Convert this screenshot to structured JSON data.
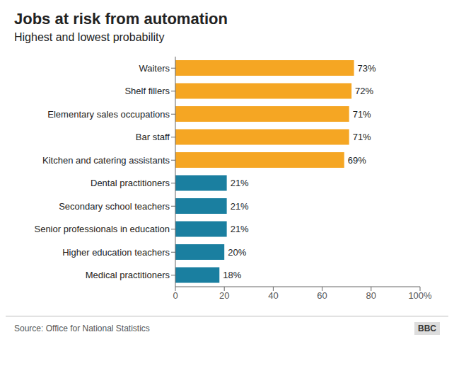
{
  "chart_data": {
    "type": "bar",
    "orientation": "horizontal",
    "title": "Jobs at risk from automation",
    "subtitle": "Highest and lowest probability",
    "categories": [
      "Medical practitioners",
      "Higher education teachers",
      "Senior professionals in education",
      "Secondary school teachers",
      "Dental practitioners",
      "Kitchen and catering assistants",
      "Bar staff",
      "Elementary sales occupations",
      "Shelf fillers",
      "Waiters"
    ],
    "values": [
      18,
      20,
      21,
      21,
      21,
      69,
      71,
      71,
      72,
      73
    ],
    "value_labels": [
      "18%",
      "20%",
      "21%",
      "21%",
      "21%",
      "69%",
      "71%",
      "71%",
      "72%",
      "73%"
    ],
    "data_labels": true,
    "colors": [
      "#1a7fa0",
      "#1a7fa0",
      "#1a7fa0",
      "#1a7fa0",
      "#1a7fa0",
      "#f5a623",
      "#f5a623",
      "#f5a623",
      "#f5a623",
      "#f5a623"
    ],
    "xlim": [
      0,
      100
    ],
    "xticks": [
      0,
      20,
      40,
      60,
      80,
      {
        "value": 100,
        "label": "100%"
      }
    ],
    "grid": false,
    "annotations": [
      "Source: Office for National Statistics",
      "BBC"
    ]
  }
}
